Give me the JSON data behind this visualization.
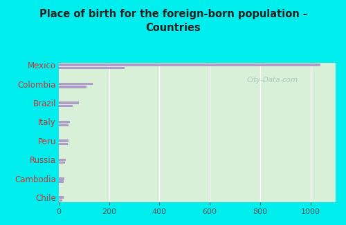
{
  "title": "Place of birth for the foreign-born population -\nCountries",
  "categories": [
    "Mexico",
    "Colombia",
    "Brazil",
    "Italy",
    "Peru",
    "Russia",
    "Cambodia",
    "Chile"
  ],
  "values1": [
    1040,
    135,
    80,
    45,
    38,
    28,
    22,
    18
  ],
  "values2": [
    260,
    110,
    55,
    38,
    35,
    24,
    20,
    15
  ],
  "bar_color": "#b09cc8",
  "bg_color": "#00eeee",
  "plot_bg_top": "#d8f0d8",
  "plot_bg_bottom": "#c8eee8",
  "title_color": "#222222",
  "label_color": "#cc3333",
  "tick_color": "#555555",
  "xlim": [
    0,
    1100
  ],
  "xticks": [
    0,
    200,
    400,
    600,
    800,
    1000
  ],
  "watermark": "City-Data.com",
  "grid_color": "#ffffff"
}
